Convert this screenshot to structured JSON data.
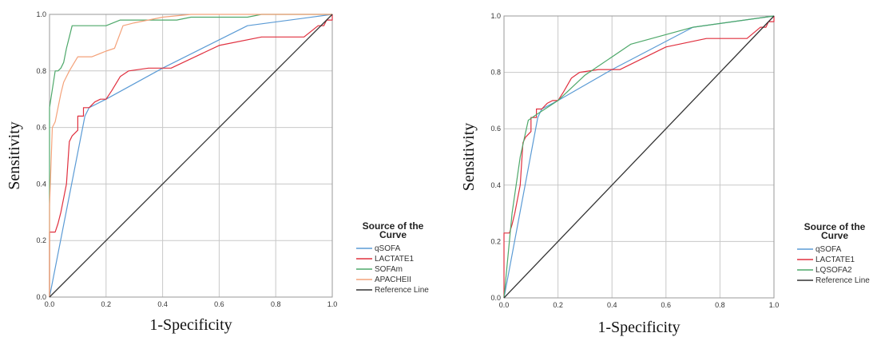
{
  "chart_data": [
    {
      "type": "line",
      "xlabel": "1-Specificity",
      "ylabel": "Sensitivity",
      "xlim": [
        0,
        1
      ],
      "ylim": [
        0,
        1
      ],
      "xticks": [
        "0.0",
        "0.2",
        "0.4",
        "0.6",
        "0.8",
        "1.0"
      ],
      "yticks": [
        "0.0",
        "0.2",
        "0.4",
        "0.6",
        "0.8",
        "1.0"
      ],
      "grid": true,
      "legend_title": "Source of the Curve",
      "legend_position": "right",
      "series": [
        {
          "name": "qSOFA",
          "color": "#5b9bd5",
          "points": [
            [
              0,
              0
            ],
            [
              0.125,
              0.64
            ],
            [
              0.14,
              0.67
            ],
            [
              0.2,
              0.7
            ],
            [
              0.4,
              0.81
            ],
            [
              0.7,
              0.96
            ],
            [
              1,
              1
            ]
          ]
        },
        {
          "name": "LACTATE1",
          "color": "#e0303f",
          "points": [
            [
              0,
              0
            ],
            [
              0,
              0.23
            ],
            [
              0.02,
              0.23
            ],
            [
              0.03,
              0.26
            ],
            [
              0.04,
              0.3
            ],
            [
              0.05,
              0.35
            ],
            [
              0.06,
              0.4
            ],
            [
              0.07,
              0.55
            ],
            [
              0.08,
              0.57
            ],
            [
              0.1,
              0.59
            ],
            [
              0.1,
              0.64
            ],
            [
              0.12,
              0.64
            ],
            [
              0.12,
              0.67
            ],
            [
              0.14,
              0.67
            ],
            [
              0.16,
              0.69
            ],
            [
              0.18,
              0.7
            ],
            [
              0.2,
              0.7
            ],
            [
              0.22,
              0.73
            ],
            [
              0.25,
              0.78
            ],
            [
              0.28,
              0.8
            ],
            [
              0.35,
              0.81
            ],
            [
              0.43,
              0.81
            ],
            [
              0.6,
              0.89
            ],
            [
              0.75,
              0.92
            ],
            [
              0.9,
              0.92
            ],
            [
              0.95,
              0.96
            ],
            [
              0.97,
              0.96
            ],
            [
              0.98,
              0.98
            ],
            [
              1,
              0.98
            ],
            [
              1,
              1
            ]
          ]
        },
        {
          "name": "SOFAm",
          "color": "#4ea86a",
          "points": [
            [
              0,
              0
            ],
            [
              0,
              0.67
            ],
            [
              0.02,
              0.8
            ],
            [
              0.03,
              0.8
            ],
            [
              0.04,
              0.81
            ],
            [
              0.05,
              0.83
            ],
            [
              0.06,
              0.88
            ],
            [
              0.07,
              0.92
            ],
            [
              0.08,
              0.96
            ],
            [
              0.2,
              0.96
            ],
            [
              0.25,
              0.98
            ],
            [
              0.45,
              0.98
            ],
            [
              0.5,
              0.99
            ],
            [
              0.7,
              0.99
            ],
            [
              0.75,
              1
            ],
            [
              1,
              1
            ]
          ]
        },
        {
          "name": "APACHEII",
          "color": "#f4a27a",
          "points": [
            [
              0,
              0
            ],
            [
              0,
              0.32
            ],
            [
              0.01,
              0.6
            ],
            [
              0.02,
              0.62
            ],
            [
              0.04,
              0.72
            ],
            [
              0.05,
              0.76
            ],
            [
              0.07,
              0.8
            ],
            [
              0.1,
              0.85
            ],
            [
              0.15,
              0.85
            ],
            [
              0.2,
              0.87
            ],
            [
              0.23,
              0.88
            ],
            [
              0.26,
              0.96
            ],
            [
              0.3,
              0.97
            ],
            [
              0.4,
              0.99
            ],
            [
              0.5,
              1
            ],
            [
              1,
              1
            ]
          ]
        },
        {
          "name": "Reference Line",
          "color": "#333333",
          "points": [
            [
              0,
              0
            ],
            [
              1,
              1
            ]
          ]
        }
      ]
    },
    {
      "type": "line",
      "xlabel": "1-Specificity",
      "ylabel": "Sensitivity",
      "xlim": [
        0,
        1
      ],
      "ylim": [
        0,
        1
      ],
      "xticks": [
        "0.0",
        "0.2",
        "0.4",
        "0.6",
        "0.8",
        "1.0"
      ],
      "yticks": [
        "0.0",
        "0.2",
        "0.4",
        "0.6",
        "0.8",
        "1.0"
      ],
      "grid": true,
      "legend_title": "Source of the Curve",
      "legend_position": "right",
      "series": [
        {
          "name": "qSOFA",
          "color": "#5b9bd5",
          "points": [
            [
              0,
              0
            ],
            [
              0.125,
              0.64
            ],
            [
              0.14,
              0.67
            ],
            [
              0.2,
              0.7
            ],
            [
              0.4,
              0.81
            ],
            [
              0.7,
              0.96
            ],
            [
              1,
              1
            ]
          ]
        },
        {
          "name": "LACTATE1",
          "color": "#e0303f",
          "points": [
            [
              0,
              0
            ],
            [
              0,
              0.23
            ],
            [
              0.02,
              0.23
            ],
            [
              0.03,
              0.26
            ],
            [
              0.04,
              0.3
            ],
            [
              0.05,
              0.35
            ],
            [
              0.06,
              0.4
            ],
            [
              0.07,
              0.55
            ],
            [
              0.08,
              0.57
            ],
            [
              0.1,
              0.59
            ],
            [
              0.1,
              0.64
            ],
            [
              0.12,
              0.64
            ],
            [
              0.12,
              0.67
            ],
            [
              0.14,
              0.67
            ],
            [
              0.16,
              0.69
            ],
            [
              0.18,
              0.7
            ],
            [
              0.2,
              0.7
            ],
            [
              0.22,
              0.73
            ],
            [
              0.25,
              0.78
            ],
            [
              0.28,
              0.8
            ],
            [
              0.35,
              0.81
            ],
            [
              0.43,
              0.81
            ],
            [
              0.6,
              0.89
            ],
            [
              0.75,
              0.92
            ],
            [
              0.9,
              0.92
            ],
            [
              0.95,
              0.96
            ],
            [
              0.97,
              0.96
            ],
            [
              0.98,
              0.98
            ],
            [
              1,
              0.98
            ],
            [
              1,
              1
            ]
          ]
        },
        {
          "name": "LQSOFA2",
          "color": "#4ea86a",
          "points": [
            [
              0,
              0
            ],
            [
              0.03,
              0.3
            ],
            [
              0.06,
              0.5
            ],
            [
              0.09,
              0.63
            ],
            [
              0.12,
              0.65
            ],
            [
              0.2,
              0.7
            ],
            [
              0.3,
              0.79
            ],
            [
              0.47,
              0.9
            ],
            [
              0.7,
              0.96
            ],
            [
              1,
              1
            ]
          ]
        },
        {
          "name": "Reference Line",
          "color": "#333333",
          "points": [
            [
              0,
              0
            ],
            [
              1,
              1
            ]
          ]
        }
      ]
    }
  ]
}
